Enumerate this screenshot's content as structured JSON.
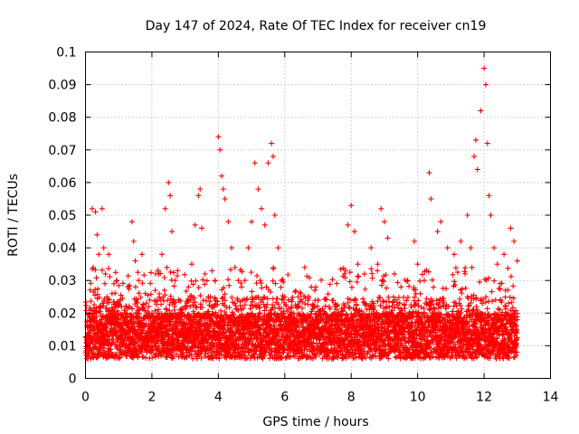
{
  "chart_data": {
    "type": "scatter",
    "title": "Day 147 of 2024, Rate Of TEC Index for receiver cn19",
    "xlabel": "GPS time / hours",
    "ylabel": "ROTI / TECUs",
    "xlim": [
      0,
      14
    ],
    "ylim": [
      0,
      0.1
    ],
    "xticks": [
      0,
      2,
      4,
      6,
      8,
      10,
      12,
      14
    ],
    "xtick_labels": [
      "0",
      "2",
      "4",
      "6",
      "8",
      "10",
      "12",
      "14"
    ],
    "yticks": [
      0,
      0.01,
      0.02,
      0.03,
      0.04,
      0.05,
      0.06,
      0.07,
      0.08,
      0.09,
      0.1
    ],
    "ytick_labels": [
      "0",
      "0.01",
      "0.02",
      "0.03",
      "0.04",
      "0.05",
      "0.06",
      "0.07",
      "0.08",
      "0.09",
      "0.1"
    ],
    "grid": true,
    "marker": "+",
    "series": [
      {
        "name": "ROTI",
        "color": "#ff0000",
        "data_range_x": [
          0,
          13.0
        ],
        "points": [
          [
            0.1,
            0.014
          ],
          [
            0.15,
            0.021
          ],
          [
            0.2,
            0.052
          ],
          [
            0.3,
            0.051
          ],
          [
            0.35,
            0.044
          ],
          [
            0.4,
            0.038
          ],
          [
            0.5,
            0.052
          ],
          [
            0.55,
            0.04
          ],
          [
            0.6,
            0.032
          ],
          [
            0.7,
            0.038
          ],
          [
            0.8,
            0.026
          ],
          [
            0.9,
            0.022
          ],
          [
            1.0,
            0.018
          ],
          [
            1.1,
            0.015
          ],
          [
            1.2,
            0.02
          ],
          [
            1.3,
            0.028
          ],
          [
            1.4,
            0.048
          ],
          [
            1.45,
            0.042
          ],
          [
            1.5,
            0.036
          ],
          [
            1.6,
            0.03
          ],
          [
            1.7,
            0.038
          ],
          [
            1.8,
            0.026
          ],
          [
            1.9,
            0.022
          ],
          [
            2.0,
            0.02
          ],
          [
            2.1,
            0.027
          ],
          [
            2.2,
            0.032
          ],
          [
            2.3,
            0.038
          ],
          [
            2.4,
            0.052
          ],
          [
            2.5,
            0.06
          ],
          [
            2.55,
            0.056
          ],
          [
            2.6,
            0.045
          ],
          [
            2.7,
            0.03
          ],
          [
            2.8,
            0.024
          ],
          [
            2.9,
            0.02
          ],
          [
            3.0,
            0.022
          ],
          [
            3.1,
            0.028
          ],
          [
            3.2,
            0.035
          ],
          [
            3.3,
            0.047
          ],
          [
            3.4,
            0.056
          ],
          [
            3.45,
            0.058
          ],
          [
            3.5,
            0.046
          ],
          [
            3.6,
            0.032
          ],
          [
            3.7,
            0.025
          ],
          [
            3.8,
            0.022
          ],
          [
            3.9,
            0.03
          ],
          [
            4.0,
            0.074
          ],
          [
            4.05,
            0.07
          ],
          [
            4.1,
            0.062
          ],
          [
            4.15,
            0.058
          ],
          [
            4.2,
            0.055
          ],
          [
            4.3,
            0.048
          ],
          [
            4.4,
            0.04
          ],
          [
            4.5,
            0.034
          ],
          [
            4.6,
            0.03
          ],
          [
            4.7,
            0.028
          ],
          [
            4.8,
            0.03
          ],
          [
            4.9,
            0.04
          ],
          [
            5.0,
            0.048
          ],
          [
            5.1,
            0.066
          ],
          [
            5.2,
            0.058
          ],
          [
            5.3,
            0.052
          ],
          [
            5.4,
            0.047
          ],
          [
            5.5,
            0.066
          ],
          [
            5.6,
            0.072
          ],
          [
            5.65,
            0.068
          ],
          [
            5.7,
            0.05
          ],
          [
            5.8,
            0.04
          ],
          [
            5.9,
            0.03
          ],
          [
            6.0,
            0.025
          ],
          [
            6.2,
            0.022
          ],
          [
            6.4,
            0.025
          ],
          [
            6.6,
            0.034
          ],
          [
            6.8,
            0.028
          ],
          [
            7.0,
            0.024
          ],
          [
            7.2,
            0.02
          ],
          [
            7.4,
            0.018
          ],
          [
            7.6,
            0.02
          ],
          [
            7.8,
            0.032
          ],
          [
            7.9,
            0.047
          ],
          [
            8.0,
            0.053
          ],
          [
            8.1,
            0.045
          ],
          [
            8.2,
            0.035
          ],
          [
            8.4,
            0.032
          ],
          [
            8.6,
            0.04
          ],
          [
            8.8,
            0.035
          ],
          [
            8.9,
            0.052
          ],
          [
            9.0,
            0.048
          ],
          [
            9.1,
            0.043
          ],
          [
            9.3,
            0.032
          ],
          [
            9.5,
            0.028
          ],
          [
            9.7,
            0.03
          ],
          [
            9.9,
            0.042
          ],
          [
            10.0,
            0.035
          ],
          [
            10.2,
            0.03
          ],
          [
            10.35,
            0.063
          ],
          [
            10.4,
            0.055
          ],
          [
            10.6,
            0.045
          ],
          [
            10.7,
            0.048
          ],
          [
            10.9,
            0.04
          ],
          [
            11.1,
            0.038
          ],
          [
            11.3,
            0.042
          ],
          [
            11.5,
            0.05
          ],
          [
            11.6,
            0.04
          ],
          [
            11.7,
            0.068
          ],
          [
            11.75,
            0.073
          ],
          [
            11.8,
            0.064
          ],
          [
            11.9,
            0.082
          ],
          [
            12.0,
            0.095
          ],
          [
            12.05,
            0.09
          ],
          [
            12.1,
            0.072
          ],
          [
            12.15,
            0.056
          ],
          [
            12.2,
            0.05
          ],
          [
            12.3,
            0.04
          ],
          [
            12.4,
            0.035
          ],
          [
            12.6,
            0.038
          ],
          [
            12.8,
            0.046
          ],
          [
            12.9,
            0.042
          ],
          [
            13.0,
            0.036
          ]
        ]
      }
    ]
  }
}
